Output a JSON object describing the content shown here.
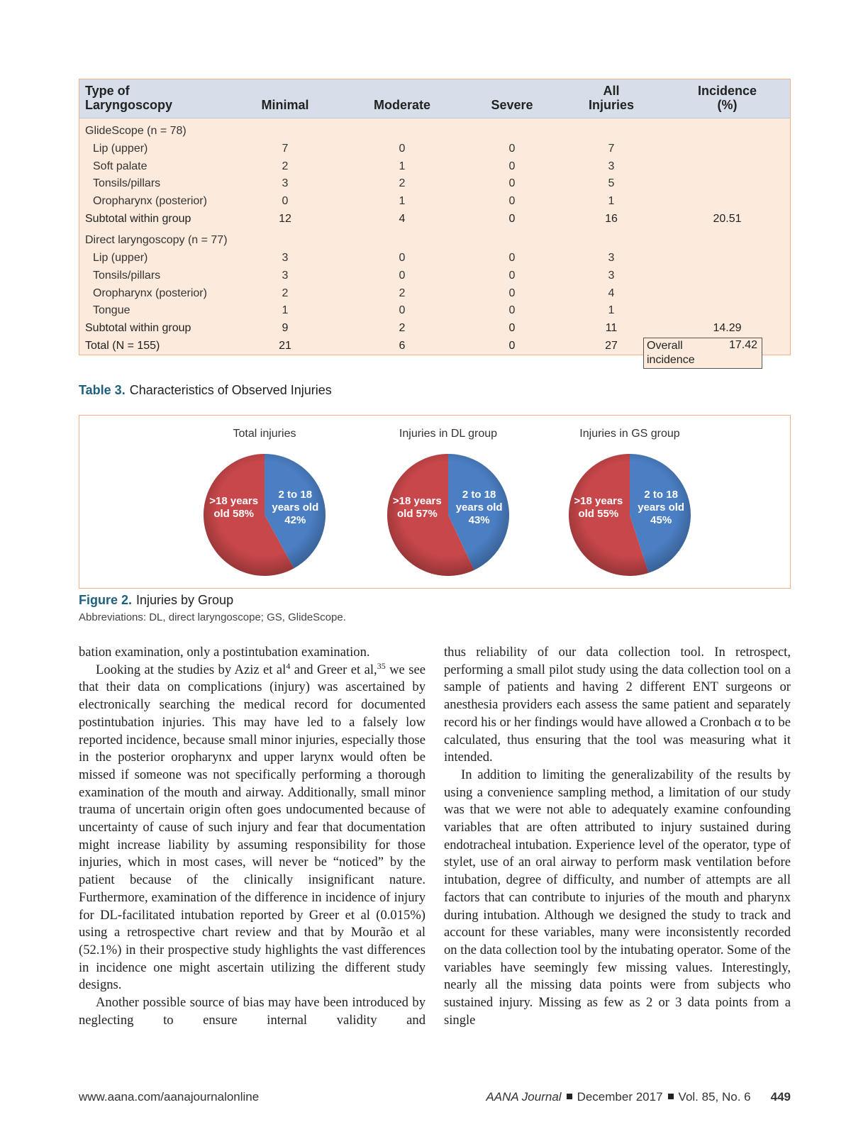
{
  "table": {
    "columns": [
      "Type of Laryngoscopy",
      "Minimal",
      "Moderate",
      "Severe",
      "All Injuries",
      "Incidence (%)"
    ],
    "rows": [
      {
        "group": "GlideScope (n = 78)"
      },
      {
        "item": "Lip (upper)",
        "cells": [
          "7",
          "0",
          "0",
          "7"
        ]
      },
      {
        "item": "Soft palate",
        "cells": [
          "2",
          "1",
          "0",
          "3"
        ]
      },
      {
        "item": "Tonsils/pillars",
        "cells": [
          "3",
          "2",
          "0",
          "5"
        ]
      },
      {
        "item": "Oropharynx (posterior)",
        "cells": [
          "0",
          "1",
          "0",
          "1"
        ]
      },
      {
        "subtotal": "Subtotal within group",
        "cells": [
          "12",
          "4",
          "0",
          "16"
        ],
        "incidence": "20.51"
      },
      {
        "group": "Direct laryngoscopy (n = 77)"
      },
      {
        "item": "Lip (upper)",
        "cells": [
          "3",
          "0",
          "0",
          "3"
        ]
      },
      {
        "item": "Tonsils/pillars",
        "cells": [
          "3",
          "0",
          "0",
          "3"
        ]
      },
      {
        "item": "Oropharynx (posterior)",
        "cells": [
          "2",
          "2",
          "0",
          "4"
        ]
      },
      {
        "item": "Tongue",
        "cells": [
          "1",
          "0",
          "0",
          "1"
        ]
      },
      {
        "subtotal": "Subtotal within group",
        "cells": [
          "9",
          "2",
          "0",
          "11"
        ],
        "incidence": "14.29"
      },
      {
        "total": "Total (N = 155)",
        "cells": [
          "21",
          "6",
          "0",
          "27"
        ],
        "overall_label": "Overall incidence",
        "incidence": "17.42"
      }
    ]
  },
  "table_caption": {
    "label": "Table 3.",
    "text": "Characteristics of Observed Injuries"
  },
  "chart_data": [
    {
      "type": "pie",
      "title": "Total injuries",
      "categories": [
        ">18 years old",
        "2 to 18 years old"
      ],
      "values": [
        58,
        42
      ],
      "value_labels": [
        "58%",
        "42%"
      ],
      "colors": [
        "#c8474a",
        "#4b7fc4"
      ]
    },
    {
      "type": "pie",
      "title": "Injuries in DL group",
      "categories": [
        ">18 years old",
        "2 to 18 years old"
      ],
      "values": [
        57,
        43
      ],
      "value_labels": [
        "57%",
        "43%"
      ],
      "colors": [
        "#c8474a",
        "#4b7fc4"
      ]
    },
    {
      "type": "pie",
      "title": "Injuries in GS group",
      "categories": [
        ">18 years old",
        "2 to 18 years old"
      ],
      "values": [
        55,
        45
      ],
      "value_labels": [
        "55%",
        "45%"
      ],
      "colors": [
        "#c8474a",
        "#4b7fc4"
      ]
    }
  ],
  "figure_caption": {
    "label": "Figure 2.",
    "text": "Injuries by Group",
    "note": "Abbreviations: DL, direct laryngoscope; GS, GlideScope."
  },
  "body": {
    "columns": [
      {
        "paragraphs": [
          [
            "bation examination, only a postintubation examination."
          ],
          [
            "Looking at the studies by Aziz et al",
            {
              "sup": "4"
            },
            " and Greer et al,",
            {
              "sup": "35"
            },
            " we see that their data on complications (injury) was ascertained by electronically searching the medical record for documented postintubation injuries. This may have led to a falsely low reported incidence, because small minor injuries, especially those in the posterior oropharynx and upper larynx would often be missed if someone was not specifically performing a thorough examination of the mouth and airway. Additionally, small minor trauma of uncertain origin often goes undocumented because of uncertainty of cause of such injury and fear that documentation might increase liability by assuming responsibility for those injuries, which in most cases, will never be “noticed” by the patient because of the clinically insignificant nature. Furthermore, examination of the difference in incidence of injury for DL-facilitated intubation reported by Greer et al (0.015%) using a retrospective chart review and that by Mourão et al (52.1%) in their prospective study highlights the vast differences in incidence one might ascertain utilizing the different study designs."
          ],
          [
            "Another possible source of bias may have been introduced by neglecting to ensure internal validity and"
          ]
        ]
      },
      {
        "paragraphs": [
          [
            "thus reliability of our data collection tool. In retrospect, performing a small pilot study using the data collection tool on a sample of patients and having 2 different ENT surgeons or anesthesia providers each assess the same patient and separately record his or her findings would have allowed a Cronbach α to be calculated, thus ensuring that the tool was measuring what it intended."
          ],
          [
            "In addition to limiting the generalizability of the results by using a convenience sampling method, a limitation of our study was that we were not able to adequately examine confounding variables that are often attributed to injury sustained during endotracheal intubation. Experience level of the operator, type of stylet, use of an oral airway to perform mask ventilation before intubation, degree of difficulty, and number of attempts are all factors that can contribute to injuries of the mouth and pharynx during intubation. Although we designed the study to track and account for these variables, many were inconsistently recorded on the data collection tool by the intubating operator. Some of the variables have seemingly few missing values. Interestingly, nearly all the missing data points were from subjects who sustained injury. Missing as few as 2 or 3 data points from a single"
          ]
        ]
      }
    ]
  },
  "footer": {
    "url": "www.aana.com/aanajournalonline",
    "journal": "AANA Journal",
    "date": "December 2017",
    "volume": "Vol. 85, No. 6",
    "page": "449"
  }
}
